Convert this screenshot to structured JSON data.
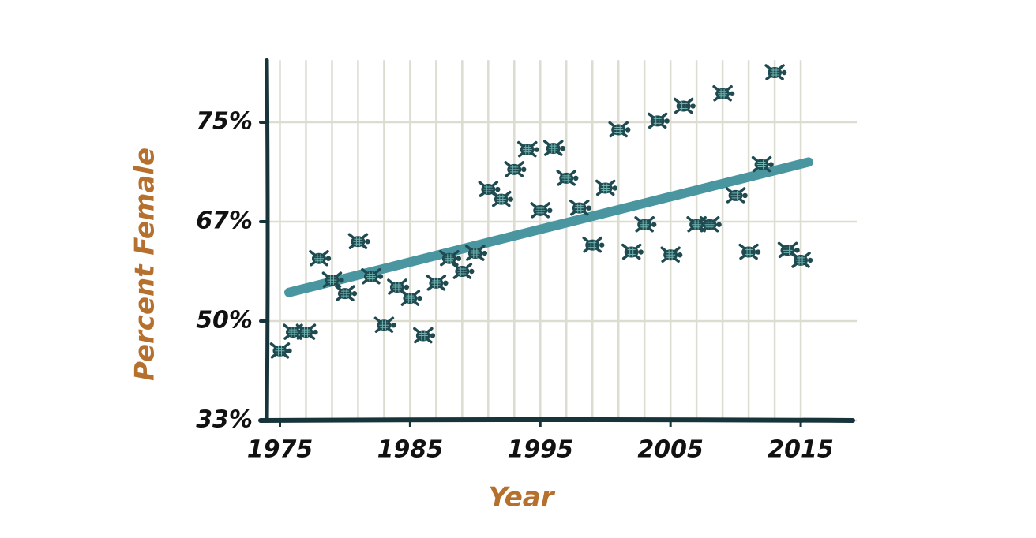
{
  "chart_data": {
    "type": "scatter",
    "x_label": "Year",
    "y_label": "Percent Female",
    "xlim": [
      1974,
      2019
    ],
    "xticks": [
      1975,
      1985,
      1995,
      2005,
      2015
    ],
    "x_grid_ticks": [
      1975,
      1977,
      1979,
      1981,
      1983,
      1985,
      1987,
      1989,
      1991,
      1993,
      1995,
      1997,
      1999,
      2001,
      2003,
      2005,
      2007,
      2009,
      2011,
      2013,
      2015
    ],
    "ylim": [
      33,
      80
    ],
    "yticks": [
      {
        "value": 33,
        "label": "33%"
      },
      {
        "value": 50,
        "label": "50%"
      },
      {
        "value": 67,
        "label": "67%"
      },
      {
        "value": 75,
        "label": "75%"
      }
    ],
    "y_scale": "evenly spaced ticks",
    "grid": true,
    "series": [
      {
        "color": "#1e4a50",
        "x": [
          1975,
          1976,
          1977,
          1978,
          1979,
          1980,
          1981,
          1982,
          1983,
          1984,
          1985,
          1986,
          1987,
          1988,
          1989,
          1990,
          1991,
          1992,
          1993,
          1994,
          1995,
          1996,
          1997,
          1998,
          1999,
          2000,
          2001,
          2002,
          2003,
          2004,
          2005,
          2006,
          2007,
          2008,
          2009,
          2010,
          2011,
          2012,
          2013,
          2014,
          2015
        ],
        "values": [
          44.9,
          48.1,
          48.1,
          60.7,
          57.0,
          54.7,
          63.6,
          57.6,
          49.3,
          55.8,
          53.9,
          47.5,
          56.5,
          60.7,
          58.5,
          61.6,
          69.6,
          68.8,
          71.2,
          72.8,
          67.9,
          72.9,
          70.5,
          68.1,
          63.0,
          69.7,
          74.4,
          61.8,
          66.5,
          75.1,
          61.3,
          76.3,
          66.5,
          66.5,
          77.3,
          69.1,
          61.8,
          71.6,
          79.0,
          62.1,
          60.4
        ]
      }
    ],
    "trend": {
      "color": "#4a96a0",
      "x": [
        1975.7,
        2015.6
      ],
      "values": [
        54.9,
        71.8
      ]
    }
  }
}
